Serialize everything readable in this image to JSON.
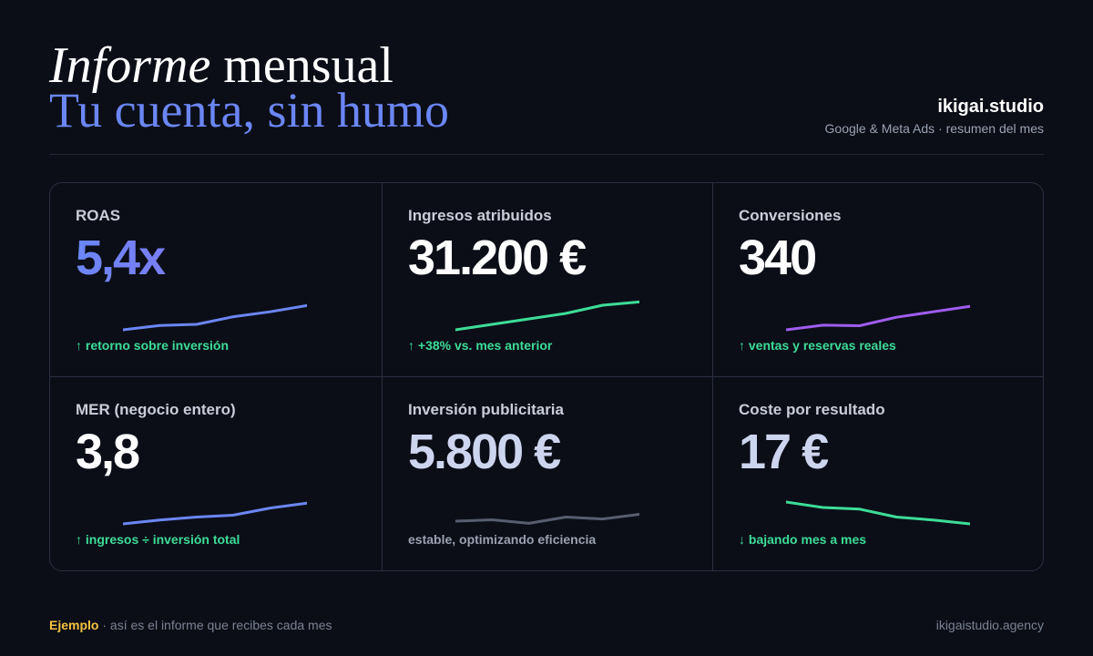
{
  "header": {
    "title_italic": "Informe",
    "title_rest": "mensual",
    "subtitle": "Tu cuenta, sin humo",
    "brand_name": "ikigai.studio",
    "brand_sub": "Google & Meta Ads · resumen del mes"
  },
  "colors": {
    "background": "#0b0e17",
    "accent_blue": "#6b86f5",
    "accent_green": "#3ddc97",
    "accent_purple": "#a05cf0",
    "accent_yellow": "#f5c242"
  },
  "metrics": [
    {
      "label": "ROAS",
      "value": "5,4x",
      "note": "↑ retorno sobre inversión",
      "trend": "up",
      "spark": {
        "color": "#6b86f5",
        "values": [
          1.0,
          2.6,
          3.0,
          5.8,
          7.6,
          9.9
        ]
      }
    },
    {
      "label": "Ingresos atribuidos",
      "value": "31.200 €",
      "note": "↑ +38% vs. mes anterior",
      "trend": "up",
      "spark": {
        "color": "#3ddc97",
        "values": [
          1.0,
          3.0,
          5.0,
          7.0,
          10.0,
          11.2
        ]
      }
    },
    {
      "label": "Conversiones",
      "value": "340",
      "note": "↑ ventas y reservas reales",
      "trend": "up",
      "spark": {
        "color": "#a05cf0",
        "values": [
          1.0,
          2.7,
          2.5,
          5.6,
          7.6,
          9.6
        ]
      }
    },
    {
      "label": "MER (negocio entero)",
      "value": "3,8",
      "note": "↑ ingresos ÷ inversión total",
      "trend": "up",
      "spark": {
        "color": "#6b86f5",
        "values": [
          1.0,
          2.4,
          3.5,
          4.2,
          6.8,
          8.6
        ]
      }
    },
    {
      "label": "Inversión publicitaria",
      "value": "5.800 €",
      "note": "estable, optimizando eficiencia",
      "trend": "flat",
      "spark": {
        "color": "#585e70",
        "values": [
          2.0,
          2.5,
          1.2,
          3.5,
          2.8,
          4.5
        ]
      }
    },
    {
      "label": "Coste por resultado",
      "value": "17 €",
      "note": "↓ bajando mes a mes",
      "trend": "down",
      "spark": {
        "color": "#3ddc97",
        "values": [
          9.0,
          7.0,
          6.4,
          3.5,
          2.4,
          1.0
        ]
      }
    }
  ],
  "footer": {
    "tag": "Ejemplo",
    "separator": "·",
    "text": "así es el informe que recibes cada mes",
    "url": "ikigaistudio.agency"
  }
}
